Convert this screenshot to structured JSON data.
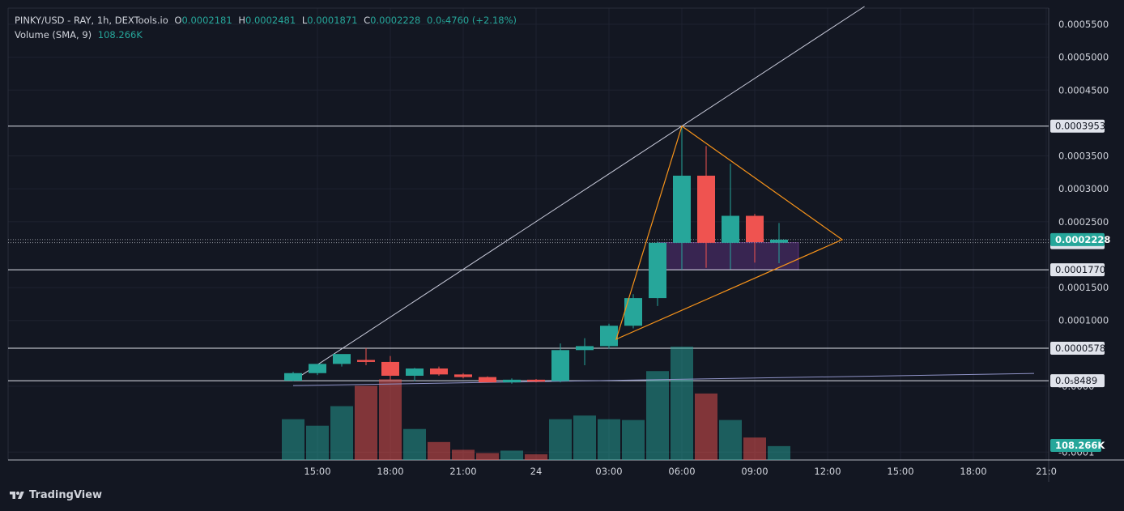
{
  "legend": {
    "symbol": "PINKY/USD - RAY, 1h, DEXTools.io",
    "open_key": "O",
    "open": "0.0002181",
    "high_key": "H",
    "high": "0.0002481",
    "low_key": "L",
    "low": "0.0001871",
    "close_key": "C",
    "close": "0.0002228",
    "change": "0.0₅4760 (+2.18%)",
    "volume_label": "Volume (SMA, 9)",
    "volume_value": "108.266K"
  },
  "brand": {
    "name": "TradingView"
  },
  "colors": {
    "up": "#26a69a",
    "down": "#ef5350",
    "background": "#131722",
    "grid": "#1e2230",
    "text": "#d1d4dc",
    "trend": "#c7c9d9",
    "triangle": "#f7931a",
    "zone": "#7e3fa8"
  },
  "chart_data": {
    "type": "candlestick",
    "price_axis": {
      "ylim": [
        -0.00015,
        0.0005835
      ],
      "ticks": [
        {
          "value": 0.00055,
          "label": "0.0005500"
        },
        {
          "value": 0.0005,
          "label": "0.0005000"
        },
        {
          "value": 0.00045,
          "label": "0.0004500"
        },
        {
          "value": 0.00035,
          "label": "0.0003500"
        },
        {
          "value": 0.0003,
          "label": "0.0003000"
        },
        {
          "value": 0.00025,
          "label": "0.0002500"
        },
        {
          "value": 0.00015,
          "label": "0.0001500"
        },
        {
          "value": 0.0001,
          "label": "0.0001000"
        },
        {
          "value": 0.0,
          "label": "-0.0000"
        },
        {
          "value": -0.0001,
          "label": "-0.0001"
        }
      ]
    },
    "horizontal_levels": [
      {
        "value": 0.0003953,
        "label": "0.0003953"
      },
      {
        "value": 0.000177,
        "label": "0.0001770"
      },
      {
        "value": 5.782e-05,
        "label": "0.00005782"
      },
      {
        "value": 8.5e-06,
        "label": "0.0₅8489"
      }
    ],
    "current_price": {
      "value": 0.0002228,
      "label": "0.0002228"
    },
    "zone_top": {
      "value": 0.0002183,
      "label": "0.0002183"
    },
    "volume_label": "108.266K",
    "time_axis": {
      "xlim": [
        8.7,
        22.2
      ],
      "ticks": [
        {
          "t": 9,
          "label": "15:00"
        },
        {
          "t": 12,
          "label": "18:00"
        },
        {
          "t": 15,
          "label": "21:00"
        },
        {
          "t": 18,
          "label": "24"
        },
        {
          "t": 21,
          "label": "03:00"
        },
        {
          "t": 24,
          "label": "06:00"
        },
        {
          "t": 27,
          "label": "09:00"
        },
        {
          "t": 30,
          "label": "12:00"
        },
        {
          "t": 33,
          "label": "15:00"
        },
        {
          "t": 36,
          "label": "18:00"
        },
        {
          "t": 39,
          "label": "21:0"
        }
      ]
    },
    "candles": [
      {
        "t": 8,
        "o": 8.5e-06,
        "h": 2.2e-05,
        "l": 7.5e-06,
        "c": 2e-05
      },
      {
        "t": 9,
        "o": 2e-05,
        "h": 3.2e-05,
        "l": 1.7e-05,
        "c": 3.4e-05
      },
      {
        "t": 10,
        "o": 3.4e-05,
        "h": 4.8e-05,
        "l": 3e-05,
        "c": 4.9e-05
      },
      {
        "t": 11,
        "o": 4e-05,
        "h": 5.8e-05,
        "l": 3.2e-05,
        "c": 3.7e-05
      },
      {
        "t": 12,
        "o": 3.7e-05,
        "h": 4.6e-05,
        "l": 1e-05,
        "c": 1.6e-05
      },
      {
        "t": 13,
        "o": 1.6e-05,
        "h": 2.8e-05,
        "l": 8e-06,
        "c": 2.7e-05
      },
      {
        "t": 14,
        "o": 2.7e-05,
        "h": 3e-05,
        "l": 1.6e-05,
        "c": 1.8e-05
      },
      {
        "t": 15,
        "o": 1.8e-05,
        "h": 2e-05,
        "l": 1.2e-05,
        "c": 1.4e-05
      },
      {
        "t": 16,
        "o": 1.4e-05,
        "h": 1.5e-05,
        "l": 6e-06,
        "c": 6e-06
      },
      {
        "t": 17,
        "o": 6e-06,
        "h": 1.2e-05,
        "l": 4e-06,
        "c": 1e-05
      },
      {
        "t": 18,
        "o": 1e-05,
        "h": 1.1e-05,
        "l": 6e-06,
        "c": 7e-06
      },
      {
        "t": 19,
        "o": 8e-06,
        "h": 6.5e-05,
        "l": 6e-06,
        "c": 5.5e-05
      },
      {
        "t": 20,
        "o": 5.5e-05,
        "h": 7.3e-05,
        "l": 3.2e-05,
        "c": 6.1e-05
      },
      {
        "t": 21,
        "o": 6.1e-05,
        "h": 9.5e-05,
        "l": 5.7e-05,
        "c": 9.2e-05
      },
      {
        "t": 22,
        "o": 9.2e-05,
        "h": 0.00014,
        "l": 8.8e-05,
        "c": 0.000134
      },
      {
        "t": 23,
        "o": 0.000134,
        "h": 0.00022,
        "l": 0.000122,
        "c": 0.000218
      },
      {
        "t": 24,
        "o": 0.000218,
        "h": 0.0003953,
        "l": 0.000177,
        "c": 0.00032
      },
      {
        "t": 25,
        "o": 0.00032,
        "h": 0.000365,
        "l": 0.00018,
        "c": 0.000218
      },
      {
        "t": 26,
        "o": 0.000218,
        "h": 0.000338,
        "l": 0.000178,
        "c": 0.000259
      },
      {
        "t": 27,
        "o": 0.000259,
        "h": 0.000262,
        "l": 0.000188,
        "c": 0.000219
      },
      {
        "t": 28,
        "o": 0.0002181,
        "h": 0.0002481,
        "l": 0.0001871,
        "c": 0.0002228
      }
    ],
    "volume": [
      {
        "t": 8,
        "v": 1.0,
        "dir": "up"
      },
      {
        "t": 9,
        "v": 0.84,
        "dir": "up"
      },
      {
        "t": 10,
        "v": 1.32,
        "dir": "up"
      },
      {
        "t": 11,
        "v": 1.82,
        "dir": "down"
      },
      {
        "t": 12,
        "v": 1.98,
        "dir": "down"
      },
      {
        "t": 13,
        "v": 0.76,
        "dir": "up"
      },
      {
        "t": 14,
        "v": 0.44,
        "dir": "down"
      },
      {
        "t": 15,
        "v": 0.25,
        "dir": "down"
      },
      {
        "t": 16,
        "v": 0.17,
        "dir": "down"
      },
      {
        "t": 17,
        "v": 0.23,
        "dir": "up"
      },
      {
        "t": 18,
        "v": 0.14,
        "dir": "down"
      },
      {
        "t": 19,
        "v": 1.0,
        "dir": "up"
      },
      {
        "t": 20,
        "v": 1.09,
        "dir": "up"
      },
      {
        "t": 21,
        "v": 1.0,
        "dir": "up"
      },
      {
        "t": 22,
        "v": 0.98,
        "dir": "up"
      },
      {
        "t": 23,
        "v": 2.18,
        "dir": "up"
      },
      {
        "t": 24,
        "v": 2.78,
        "dir": "up"
      },
      {
        "t": 25,
        "v": 1.63,
        "dir": "down"
      },
      {
        "t": 26,
        "v": 0.98,
        "dir": "up"
      },
      {
        "t": 27,
        "v": 0.55,
        "dir": "down"
      },
      {
        "t": 28,
        "v": 0.34,
        "dir": "up"
      }
    ],
    "drawings": {
      "rising_trendline": {
        "points": [
          [
            8,
            8.5e-06
          ],
          [
            24,
            0.0003953
          ]
        ],
        "extends": "right"
      },
      "lower_trendline": {
        "points": [
          [
            8,
            1e-06
          ],
          [
            38.5,
            1.95e-05
          ]
        ]
      },
      "triangle": {
        "apex_top": [
          24,
          0.0003953
        ],
        "apex_right": [
          30.6,
          0.0002228
        ],
        "bottom": [
          21.3,
          7.16e-05
        ]
      },
      "zone": {
        "t_start": 23,
        "t_end": 28.8,
        "top": 0.0002183,
        "bottom": 0.000177
      }
    }
  }
}
